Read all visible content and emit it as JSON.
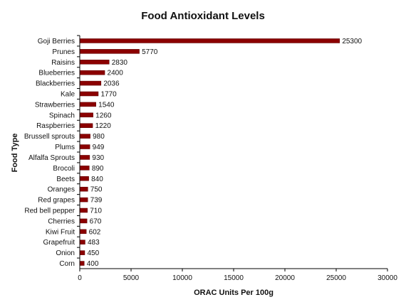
{
  "chart_data": {
    "type": "bar",
    "orientation": "horizontal",
    "title": "Food Antioxidant Levels",
    "xlabel": "ORAC Units Per 100g",
    "ylabel": "Food Type",
    "xlim": [
      0,
      30000
    ],
    "xticks": [
      0,
      5000,
      10000,
      15000,
      20000,
      25000,
      30000
    ],
    "grid": false,
    "legend": "none",
    "bar_color": "#8b0000",
    "categories": [
      "Goji Berries",
      "Prunes",
      "Raisins",
      "Blueberries",
      "Blackberries",
      "Kale",
      "Strawberries",
      "Spinach",
      "Raspberries",
      "Brussell sprouts",
      "Plums",
      "Alfalfa Sprouts",
      "Brocoli",
      "Beets",
      "Oranges",
      "Red grapes",
      "Red bell pepper",
      "Cherries",
      "Kiwi Fruit",
      "Grapefruit",
      "Onion",
      "Corn"
    ],
    "values": [
      25300,
      5770,
      2830,
      2400,
      2036,
      1770,
      1540,
      1260,
      1220,
      980,
      949,
      930,
      890,
      840,
      750,
      739,
      710,
      670,
      602,
      483,
      450,
      400
    ]
  }
}
